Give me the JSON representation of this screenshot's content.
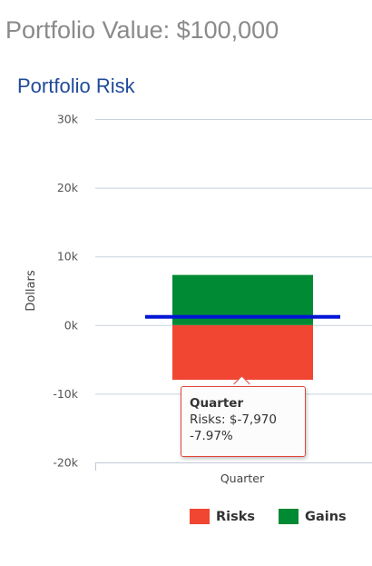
{
  "header": {
    "portfolio_value": "Portfolio Value: $100,000"
  },
  "chart_data": {
    "type": "bar",
    "title": "Portfolio Risk",
    "xlabel": "",
    "ylabel": "Dollars",
    "categories": [
      "Quarter"
    ],
    "ylim": [
      -20000,
      30000
    ],
    "yticks": [
      30000,
      20000,
      10000,
      0,
      -10000,
      -20000
    ],
    "yticklabels": [
      "30k",
      "20k",
      "10k",
      "0k",
      "-10k",
      "-20k"
    ],
    "series": [
      {
        "name": "Risks",
        "values": [
          -7970
        ],
        "color": "#f04632"
      },
      {
        "name": "Gains",
        "values": [
          7300
        ],
        "color": "#008a33"
      }
    ],
    "reference_line": {
      "value": 1200,
      "color": "#0015d6"
    },
    "grid": true,
    "legend": "bottom-right"
  },
  "tooltip": {
    "title": "Quarter",
    "line1": "Risks: $-7,970",
    "line2": "-7.97%"
  }
}
